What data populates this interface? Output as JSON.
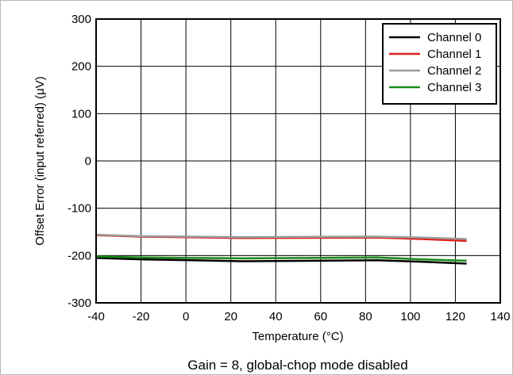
{
  "chart_data": {
    "type": "line",
    "title": "",
    "xlabel": "Temperature (°C)",
    "ylabel": "Offset Error (input referred) (μV)",
    "caption": "Gain = 8, global-chop mode disabled",
    "xlim": [
      -40,
      140
    ],
    "ylim": [
      -300,
      300
    ],
    "x_ticks": [
      "-40",
      "-20",
      "0",
      "20",
      "40",
      "60",
      "80",
      "100",
      "120",
      "140"
    ],
    "y_ticks": [
      "300",
      "200",
      "100",
      "0",
      "-100",
      "-200",
      "-300"
    ],
    "x_tick_values": [
      -40,
      -20,
      0,
      20,
      40,
      60,
      80,
      100,
      120,
      140
    ],
    "y_tick_values": [
      300,
      200,
      100,
      0,
      -100,
      -200,
      -300
    ],
    "grid": true,
    "legend_position": "top-right",
    "x": [
      -40,
      -20,
      25,
      85,
      105,
      125
    ],
    "series": [
      {
        "name": "Channel 0",
        "color": "#000000",
        "values": [
          -205,
          -208,
          -212,
          -210,
          -213,
          -217
        ]
      },
      {
        "name": "Channel 1",
        "color": "#e0201b",
        "values": [
          -157,
          -160,
          -163,
          -162,
          -165,
          -169
        ]
      },
      {
        "name": "Channel 2",
        "color": "#9b9b9b",
        "values": [
          -156,
          -159,
          -161,
          -160,
          -162,
          -165
        ]
      },
      {
        "name": "Channel 3",
        "color": "#1a8a1a",
        "values": [
          -202,
          -204,
          -206,
          -204,
          -208,
          -211
        ]
      }
    ]
  }
}
